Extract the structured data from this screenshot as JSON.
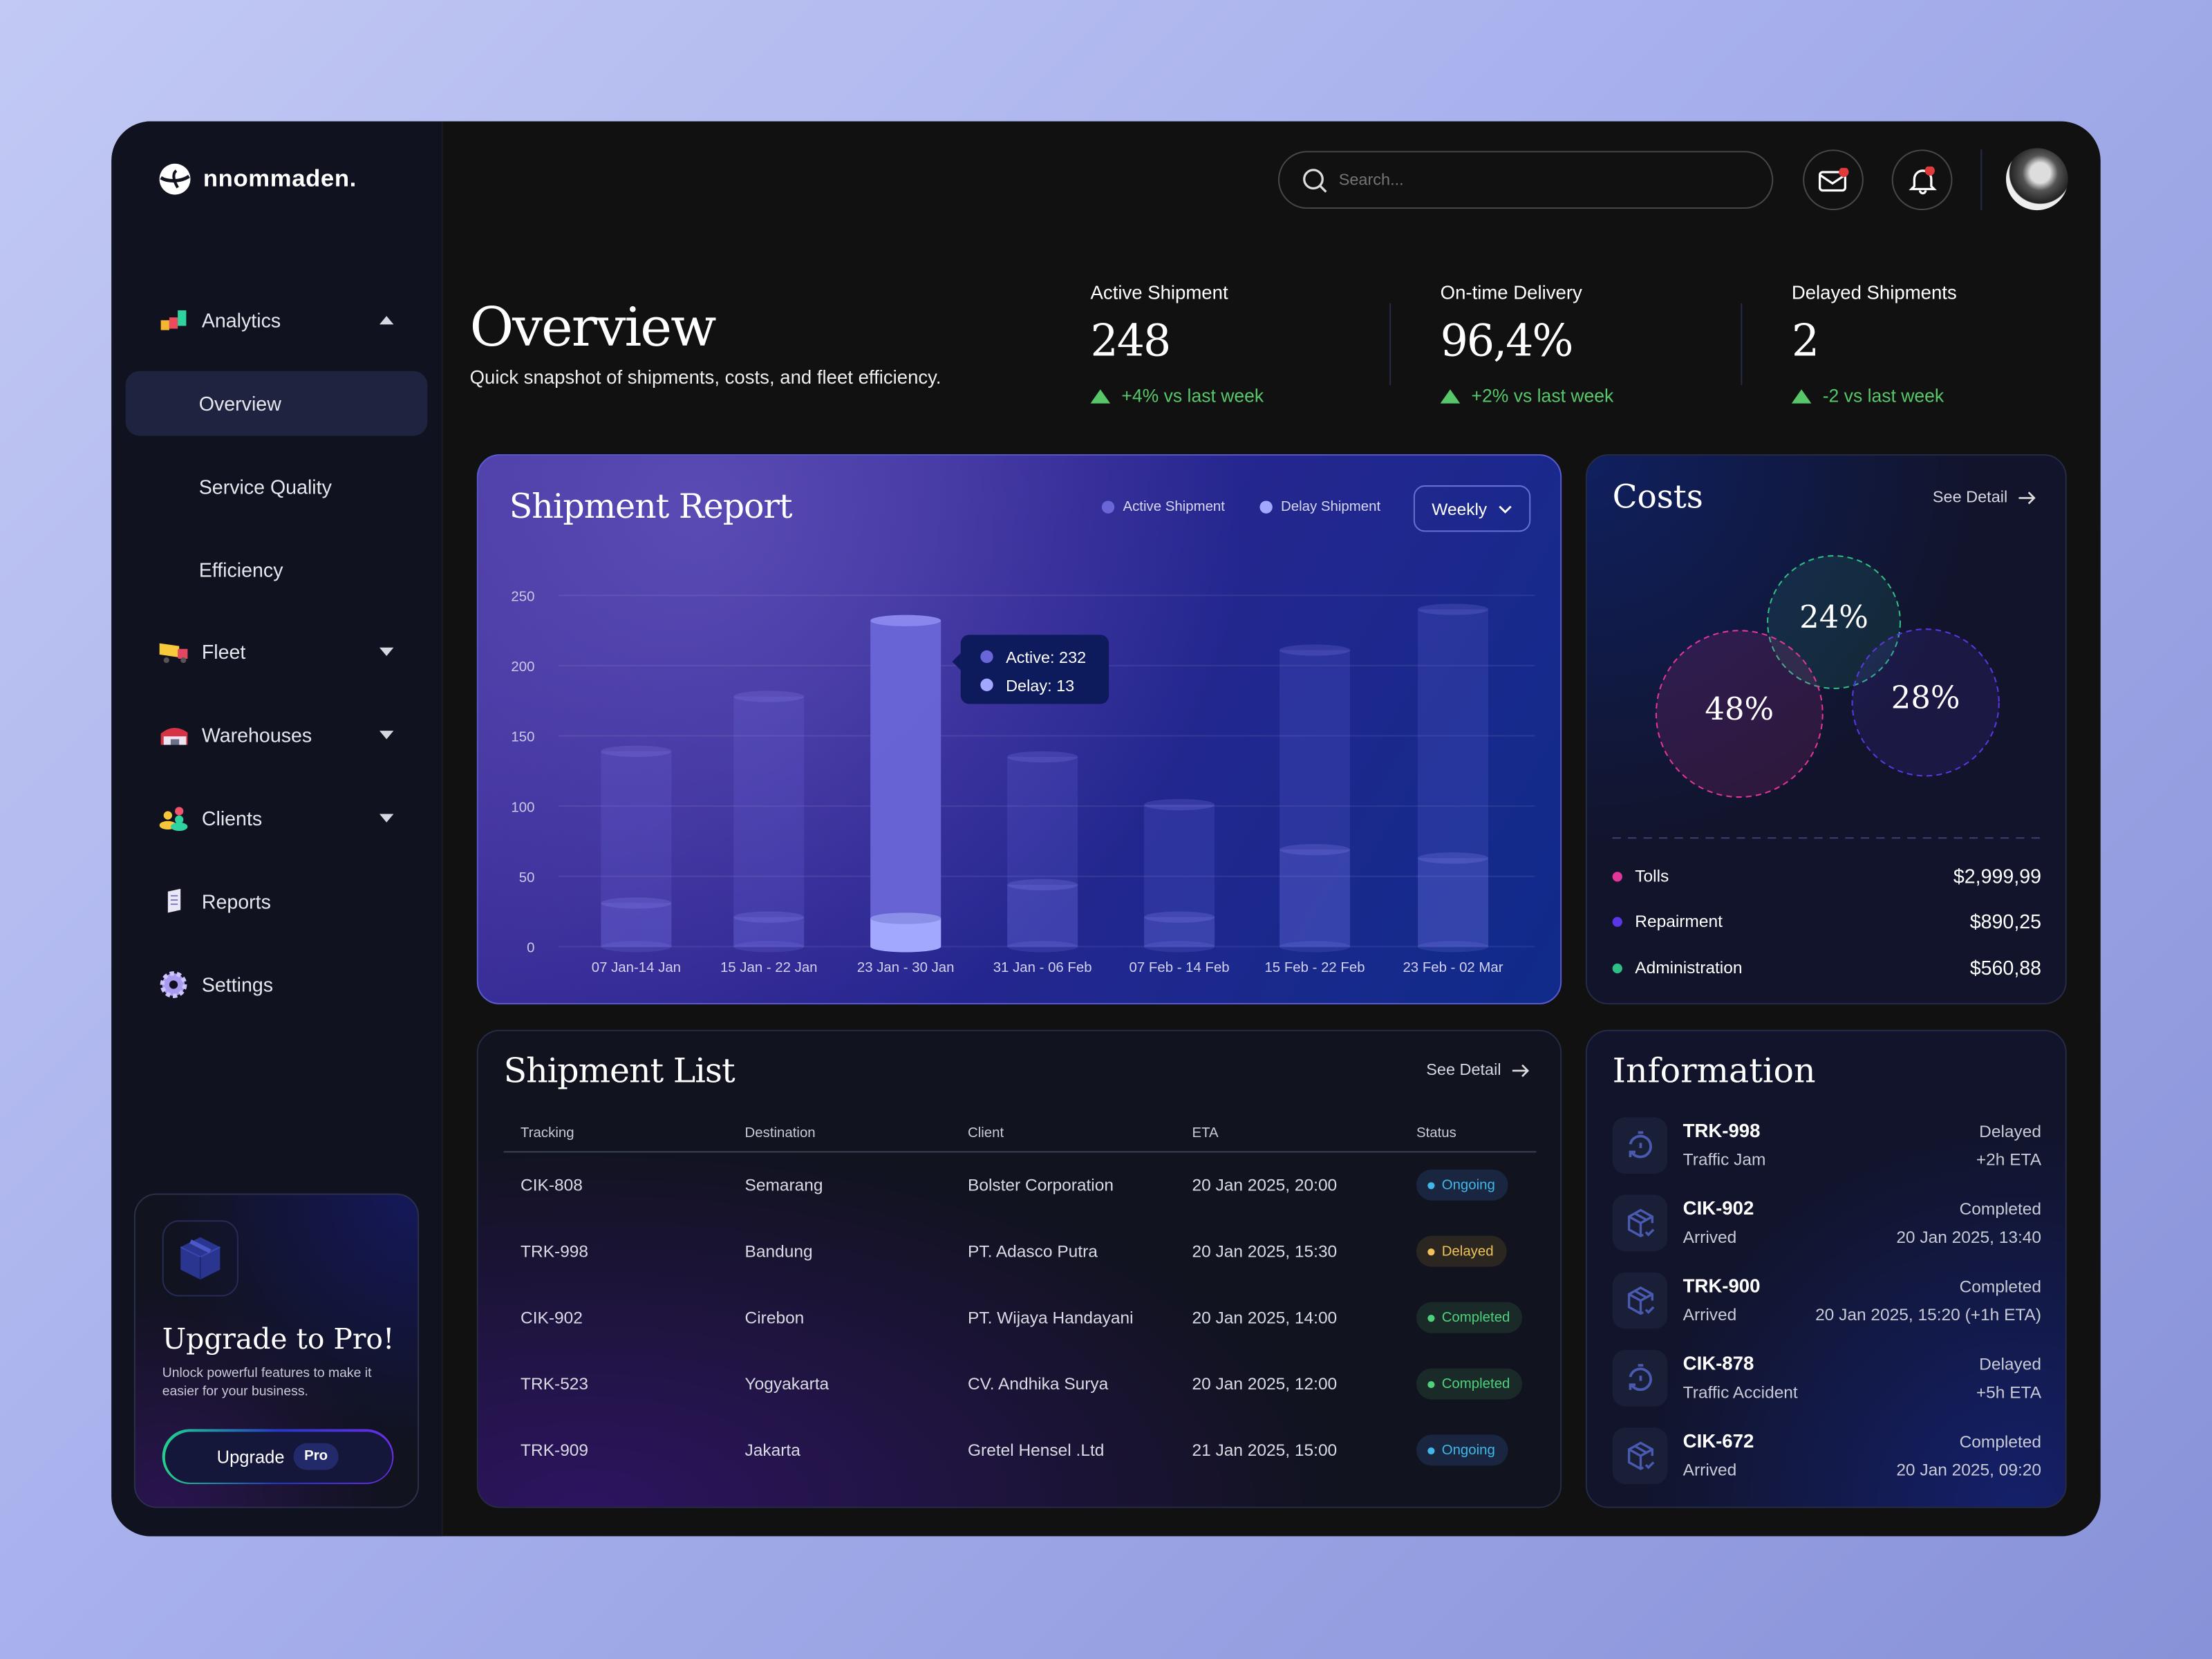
{
  "brand": {
    "name": "nnommaden."
  },
  "sidebar": {
    "items": [
      {
        "label": "Analytics",
        "icon": "analytics-icon",
        "expanded": true
      },
      {
        "label": "Overview",
        "active": true
      },
      {
        "label": "Service Quality"
      },
      {
        "label": "Efficiency"
      },
      {
        "label": "Fleet",
        "icon": "truck-icon"
      },
      {
        "label": "Warehouses",
        "icon": "warehouse-icon"
      },
      {
        "label": "Clients",
        "icon": "clients-icon"
      },
      {
        "label": "Reports",
        "icon": "reports-icon"
      },
      {
        "label": "Settings",
        "icon": "settings-icon"
      }
    ],
    "upgrade": {
      "title": "Upgrade to Pro!",
      "text": "Unlock powerful features to make it easier for your business.",
      "button": "Upgrade",
      "badge": "Pro"
    }
  },
  "header": {
    "search_placeholder": "Search...",
    "mail_unread": true,
    "notifications_unread": true
  },
  "overview": {
    "title": "Overview",
    "subtitle": "Quick snapshot of shipments, costs, and fleet efficiency."
  },
  "stats": [
    {
      "label": "Active Shipment",
      "value": "248",
      "change": "+4% vs last week"
    },
    {
      "label": "On-time Delivery",
      "value": "96,4%",
      "change": "+2% vs last week"
    },
    {
      "label": "Delayed Shipments",
      "value": "2",
      "change": "-2 vs last week"
    }
  ],
  "report": {
    "title": "Shipment Report",
    "legend": [
      "Active Shipment",
      "Delay Shipment"
    ],
    "period": "Weekly",
    "tooltip": {
      "active": "Active: 232",
      "delay": "Delay: 13"
    }
  },
  "chart_data": {
    "type": "bar",
    "categories": [
      "07 Jan-14 Jan",
      "15 Jan - 22 Jan",
      "23 Jan - 30 Jan",
      "31 Jan - 06 Feb",
      "07 Feb - 14 Feb",
      "15 Feb - 22 Feb",
      "23 Feb - 02 Mar"
    ],
    "series": [
      {
        "name": "Active Shipment",
        "values": [
          139,
          178,
          232,
          135,
          101,
          211,
          240
        ],
        "color": "#6a66d8"
      },
      {
        "name": "Delay Shipment",
        "values": [
          31,
          21,
          13,
          44,
          21,
          69,
          63
        ],
        "color": "#a3a8ff"
      }
    ],
    "yticks": [
      "0",
      "50",
      "100",
      "150",
      "200",
      "250"
    ],
    "ylim": [
      0,
      250
    ],
    "highlighted": "23 Jan - 30 Jan",
    "grid": true,
    "legend": "top-right"
  },
  "costs": {
    "title": "Costs",
    "see_detail": "See Detail",
    "items": [
      {
        "label": "Tolls",
        "amount": "$2,999,99",
        "percent": "48%",
        "color": "#e4359a"
      },
      {
        "label": "Repairment",
        "amount": "$890,25",
        "percent": "28%",
        "color": "#5b36e6"
      },
      {
        "label": "Administration",
        "amount": "$560,88",
        "percent": "24%",
        "color": "#2fbf84"
      }
    ]
  },
  "shipments": {
    "title": "Shipment List",
    "see_detail": "See Detail",
    "columns": [
      "Tracking",
      "Destination",
      "Client",
      "ETA",
      "Status"
    ],
    "rows": [
      {
        "tracking": "CIK-808",
        "destination": "Semarang",
        "client": "Bolster Corporation",
        "eta": "20 Jan 2025, 20:00",
        "status": "Ongoing"
      },
      {
        "tracking": "TRK-998",
        "destination": "Bandung",
        "client": "PT. Adasco Putra",
        "eta": "20 Jan 2025, 15:30",
        "status": "Delayed"
      },
      {
        "tracking": "CIK-902",
        "destination": "Cirebon",
        "client": "PT. Wijaya Handayani",
        "eta": "20 Jan 2025, 14:00",
        "status": "Completed"
      },
      {
        "tracking": "TRK-523",
        "destination": "Yogyakarta",
        "client": "CV. Andhika Surya",
        "eta": "20 Jan 2025, 12:00",
        "status": "Completed"
      },
      {
        "tracking": "TRK-909",
        "destination": "Jakarta",
        "client": "Gretel Hensel .Ltd",
        "eta": "21 Jan 2025, 15:00",
        "status": "Ongoing"
      }
    ]
  },
  "information": {
    "title": "Information",
    "items": [
      {
        "id": "TRK-998",
        "reason": "Traffic Jam",
        "status": "Delayed",
        "detail": "+2h ETA",
        "icon": "timer-icon"
      },
      {
        "id": "CIK-902",
        "reason": "Arrived",
        "status": "Completed",
        "detail": "20 Jan 2025, 13:40",
        "icon": "package-check-icon"
      },
      {
        "id": "TRK-900",
        "reason": "Arrived",
        "status": "Completed",
        "detail": "20 Jan 2025, 15:20 (+1h ETA)",
        "icon": "package-check-icon"
      },
      {
        "id": "CIK-878",
        "reason": "Traffic Accident",
        "status": "Delayed",
        "detail": "+5h ETA",
        "icon": "timer-icon"
      },
      {
        "id": "CIK-672",
        "reason": "Arrived",
        "status": "Completed",
        "detail": "20 Jan 2025, 09:20",
        "icon": "package-check-icon"
      }
    ]
  }
}
